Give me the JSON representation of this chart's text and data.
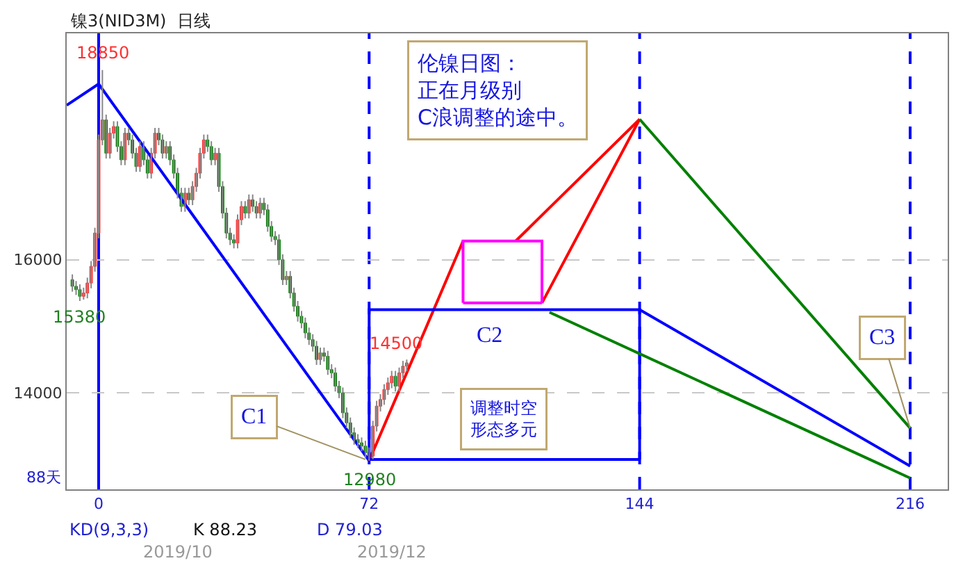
{
  "chart_data": {
    "type": "candlestick",
    "x": [
      -7,
      -6,
      -5,
      -4,
      -3,
      -2,
      -1,
      0,
      1,
      2,
      3,
      4,
      5,
      6,
      7,
      8,
      9,
      10,
      11,
      12,
      13,
      14,
      15,
      16,
      17,
      18,
      19,
      20,
      21,
      22,
      23,
      24,
      25,
      26,
      27,
      28,
      29,
      30,
      31,
      32,
      33,
      34,
      35,
      36,
      37,
      38,
      39,
      40,
      41,
      42,
      43,
      44,
      45,
      46,
      47,
      48,
      49,
      50,
      51,
      52,
      53,
      54,
      55,
      56,
      57,
      58,
      59,
      60,
      61,
      62,
      63,
      64,
      65,
      66,
      67,
      68,
      69,
      70,
      71,
      72,
      73,
      74,
      75,
      76,
      77,
      78,
      79,
      80,
      81,
      82
    ],
    "ohlc": [
      [
        15700,
        15780,
        15520,
        15600
      ],
      [
        15600,
        15680,
        15470,
        15550
      ],
      [
        15550,
        15630,
        15380,
        15450
      ],
      [
        15450,
        15580,
        15400,
        15500
      ],
      [
        15500,
        15730,
        15420,
        15650
      ],
      [
        15650,
        15980,
        15570,
        15900
      ],
      [
        15900,
        16480,
        15820,
        16400
      ],
      [
        16400,
        17880,
        16320,
        17800
      ],
      [
        17800,
        18850,
        17720,
        18100
      ],
      [
        18100,
        18180,
        17520,
        17600
      ],
      [
        17600,
        17980,
        17520,
        17900
      ],
      [
        17900,
        18080,
        17820,
        18000
      ],
      [
        18000,
        18080,
        17620,
        17700
      ],
      [
        17700,
        17780,
        17420,
        17500
      ],
      [
        17500,
        17980,
        17420,
        17900
      ],
      [
        17900,
        17980,
        17720,
        17800
      ],
      [
        17800,
        17880,
        17520,
        17600
      ],
      [
        17600,
        17680,
        17320,
        17400
      ],
      [
        17400,
        17780,
        17320,
        17700
      ],
      [
        17700,
        17780,
        17420,
        17500
      ],
      [
        17500,
        17580,
        17220,
        17300
      ],
      [
        17300,
        17680,
        17220,
        17600
      ],
      [
        17600,
        17980,
        17520,
        17900
      ],
      [
        17900,
        17980,
        17720,
        17800
      ],
      [
        17800,
        17880,
        17520,
        17600
      ],
      [
        17600,
        17780,
        17520,
        17700
      ],
      [
        17700,
        17780,
        17420,
        17500
      ],
      [
        17500,
        17580,
        17220,
        17300
      ],
      [
        17300,
        17380,
        16920,
        17000
      ],
      [
        17000,
        17080,
        16720,
        16800
      ],
      [
        16800,
        17080,
        16720,
        17000
      ],
      [
        17000,
        17080,
        16820,
        16900
      ],
      [
        16900,
        17180,
        16820,
        17100
      ],
      [
        17100,
        17380,
        17020,
        17300
      ],
      [
        17300,
        17680,
        17220,
        17600
      ],
      [
        17600,
        17880,
        17520,
        17800
      ],
      [
        17800,
        17880,
        17620,
        17700
      ],
      [
        17700,
        17780,
        17420,
        17500
      ],
      [
        17500,
        17680,
        17420,
        17600
      ],
      [
        17600,
        17680,
        17020,
        17100
      ],
      [
        17100,
        17180,
        16620,
        16700
      ],
      [
        16700,
        16780,
        16320,
        16400
      ],
      [
        16400,
        16480,
        16220,
        16300
      ],
      [
        16300,
        16380,
        16170,
        16250
      ],
      [
        16250,
        16680,
        16170,
        16600
      ],
      [
        16600,
        16880,
        16520,
        16800
      ],
      [
        16800,
        16880,
        16620,
        16700
      ],
      [
        16700,
        16980,
        16620,
        16900
      ],
      [
        16900,
        16980,
        16720,
        16800
      ],
      [
        16800,
        16880,
        16620,
        16700
      ],
      [
        16700,
        16930,
        16620,
        16850
      ],
      [
        16850,
        16930,
        16670,
        16750
      ],
      [
        16750,
        16830,
        16420,
        16500
      ],
      [
        16500,
        16580,
        16270,
        16350
      ],
      [
        16350,
        16430,
        16220,
        16300
      ],
      [
        16300,
        16380,
        15920,
        16000
      ],
      [
        16000,
        16080,
        15620,
        15700
      ],
      [
        15700,
        15830,
        15620,
        15750
      ],
      [
        15750,
        15830,
        15420,
        15500
      ],
      [
        15500,
        15580,
        15220,
        15300
      ],
      [
        15300,
        15380,
        15070,
        15150
      ],
      [
        15150,
        15230,
        14970,
        15050
      ],
      [
        15050,
        15130,
        14820,
        14900
      ],
      [
        14900,
        14980,
        14720,
        14800
      ],
      [
        14800,
        14880,
        14620,
        14700
      ],
      [
        14700,
        14780,
        14420,
        14500
      ],
      [
        14500,
        14680,
        14420,
        14600
      ],
      [
        14600,
        14680,
        14470,
        14550
      ],
      [
        14550,
        14630,
        14270,
        14350
      ],
      [
        14350,
        14430,
        14220,
        14300
      ],
      [
        14300,
        14380,
        14020,
        14100
      ],
      [
        14100,
        14180,
        13920,
        14000
      ],
      [
        14000,
        14080,
        13620,
        13700
      ],
      [
        13700,
        13780,
        13470,
        13550
      ],
      [
        13550,
        13630,
        13320,
        13400
      ],
      [
        13400,
        13480,
        13220,
        13300
      ],
      [
        13300,
        13380,
        13170,
        13250
      ],
      [
        13250,
        13330,
        13120,
        13200
      ],
      [
        13200,
        13280,
        13020,
        13100
      ],
      [
        13100,
        13180,
        12980,
        13050
      ],
      [
        13050,
        13580,
        13000,
        13500
      ],
      [
        13500,
        13880,
        13420,
        13800
      ],
      [
        13800,
        13980,
        13720,
        13900
      ],
      [
        13900,
        14130,
        13820,
        14050
      ],
      [
        14050,
        14230,
        13970,
        14150
      ],
      [
        14150,
        14330,
        14070,
        14250
      ],
      [
        14250,
        14330,
        14020,
        14100
      ],
      [
        14100,
        14380,
        14020,
        14300
      ],
      [
        14300,
        14480,
        14220,
        14400
      ],
      [
        14400,
        14500,
        14320,
        14450
      ]
    ],
    "series": [
      {
        "type": "line",
        "color": "#0000ff",
        "x": [
          -8.5,
          0,
          72
        ],
        "values": [
          18320,
          18640,
          12980
        ]
      },
      {
        "type": "line",
        "color": "#ff0000",
        "x": [
          72,
          97
        ],
        "values": [
          12980,
          16280
        ]
      },
      {
        "type": "line",
        "color": "#ff0000",
        "x": [
          111,
          144
        ],
        "values": [
          16280,
          18110
        ]
      },
      {
        "type": "line",
        "color": "#ff0000",
        "x": [
          118,
          144
        ],
        "values": [
          15350,
          18110
        ]
      },
      {
        "type": "line",
        "color": "#ff00ff",
        "x": [
          97,
          97,
          118,
          118
        ],
        "values": [
          15350,
          16280,
          16280,
          15350
        ]
      },
      {
        "type": "line",
        "color": "#ff00ff",
        "x": [
          97,
          118
        ],
        "values": [
          15350,
          15350
        ]
      },
      {
        "type": "line",
        "color": "#0000ff",
        "x": [
          72,
          72,
          144,
          144
        ],
        "values": [
          13000,
          15250,
          15250,
          13000
        ]
      },
      {
        "type": "line",
        "color": "#0000ff",
        "x": [
          72,
          144
        ],
        "values": [
          13000,
          13000
        ]
      },
      {
        "type": "line",
        "color": "#008000",
        "x": [
          144,
          216
        ],
        "values": [
          18110,
          13470
        ]
      },
      {
        "type": "line",
        "color": "#008000",
        "x": [
          120,
          216
        ],
        "values": [
          15210,
          12720
        ]
      },
      {
        "type": "line",
        "color": "#0000ff",
        "x": [
          144,
          216
        ],
        "values": [
          15250,
          12900
        ]
      }
    ],
    "ref_lines": [
      {
        "axis": "x",
        "value": 0,
        "color": "#0000ff",
        "line_style": "solid"
      },
      {
        "axis": "x",
        "value": 72,
        "color": "#0000ff",
        "line_style": "dashed"
      },
      {
        "axis": "x",
        "value": 144,
        "color": "#0000ff",
        "line_style": "dashed"
      },
      {
        "axis": "x",
        "value": 216,
        "color": "#0000ff",
        "line_style": "dashed"
      }
    ],
    "xlim": [
      -8.5,
      226
    ],
    "xticks": [
      0,
      72,
      144,
      216
    ],
    "ylim": [
      12550,
      19400
    ],
    "yticks": [
      14000,
      16000
    ],
    "grid": "y",
    "annotations": [
      "镍3(NID3M)  日线",
      "伦镍日图：正在月级别C浪调整的途中。",
      {
        "text": "C1",
        "x": 71,
        "y": 13000
      },
      "C2",
      {
        "text": "C3",
        "x": 216,
        "y": 13470
      },
      "调整时空形态多元",
      {
        "text": "18850",
        "x": 1,
        "y": 18850
      },
      {
        "text": "15380",
        "x": -5,
        "y": 15380
      },
      {
        "text": "14500",
        "x": 82,
        "y": 14500
      },
      {
        "text": "12980",
        "x": 72,
        "y": 12980
      },
      "88天",
      "KD(9,3,3)",
      "K 88.23",
      "D 79.03",
      "2019/10",
      "2019/12"
    ]
  }
}
